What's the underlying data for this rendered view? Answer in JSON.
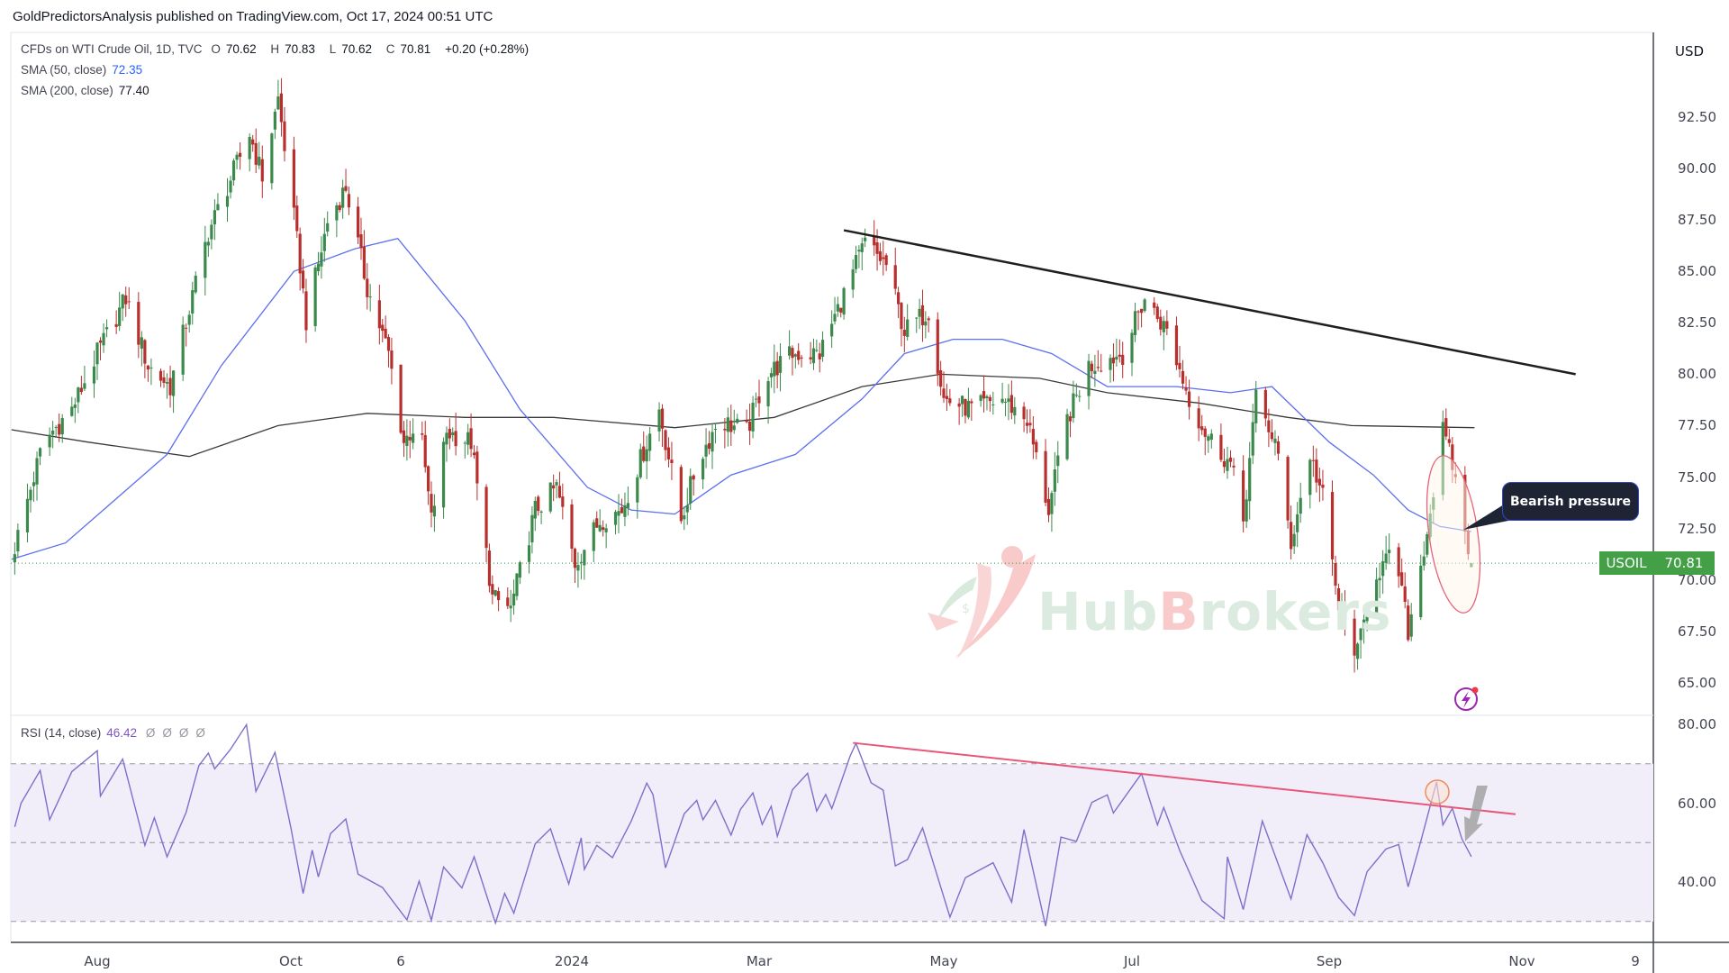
{
  "publisher": "GoldPredictorsAnalysis published on TradingView.com, Oct 17, 2024 00:51 UTC",
  "legend": {
    "symbol": "CFDs on WTI Crude Oil, 1D, TVC",
    "open_label": "O",
    "open": "70.62",
    "high_label": "H",
    "high": "70.83",
    "low_label": "L",
    "low": "70.62",
    "close_label": "C",
    "close": "70.81",
    "change": "+0.20 (+0.28%)",
    "sma50_label": "SMA (50, close)",
    "sma50_value": "72.35",
    "sma200_label": "SMA (200, close)",
    "sma200_value": "77.40",
    "rsi_label": "RSI (14, close)",
    "rsi_value": "46.42",
    "rsi_nulls": [
      "Ø",
      "Ø",
      "Ø",
      "Ø"
    ]
  },
  "price_axis": {
    "currency": "USD",
    "ticks": [
      "92.50",
      "90.00",
      "87.50",
      "85.00",
      "82.50",
      "80.00",
      "77.50",
      "75.00",
      "72.50",
      "70.00",
      "67.50",
      "65.00"
    ]
  },
  "rsi_axis": {
    "ticks": [
      "80.00",
      "60.00",
      "40.00"
    ]
  },
  "time_axis": {
    "ticks": [
      {
        "label": "Aug",
        "date": "2023-08-01"
      },
      {
        "label": "Oct",
        "date": "2023-10-01"
      },
      {
        "label": "6",
        "date": "2023-11-06"
      },
      {
        "label": "2024",
        "date": "2024-01-01"
      },
      {
        "label": "Mar",
        "date": "2024-03-01"
      },
      {
        "label": "May",
        "date": "2024-05-01"
      },
      {
        "label": "Jul",
        "date": "2024-07-01"
      },
      {
        "label": "Sep",
        "date": "2024-09-01"
      },
      {
        "label": "Nov",
        "date": "2024-11-01"
      },
      {
        "label": "9",
        "date": "2024-12-09"
      }
    ]
  },
  "last_price": {
    "symbol": "USOIL",
    "value": "70.81",
    "color": "#43a047"
  },
  "annotation": {
    "text": "Bearish pressure"
  },
  "watermark": {
    "part1": "Hub",
    "part2": "B",
    "part3": "rokers"
  },
  "colors": {
    "up": "#3b8a4c",
    "down": "#b8302e",
    "sma50": "#5b6ff0",
    "sma200": "#3a3a3a",
    "rsi": "#7e6fc9",
    "rsi_band": "#f1eefa",
    "rsi_trend": "#e8577a",
    "trendline": "#1f1f1f",
    "ellipse": "#e8627a"
  },
  "chart_data": {
    "type": "candlestick",
    "symbol": "USOIL",
    "timeframe": "1D",
    "ylim": [
      63.5,
      95.5
    ],
    "last_bar": {
      "open": 70.62,
      "high": 70.83,
      "low": 70.62,
      "close": 70.81
    },
    "close_path": [
      [
        "2023-07-06",
        71.6
      ],
      [
        "2023-07-15",
        76.7
      ],
      [
        "2023-07-24",
        78.3
      ],
      [
        "2023-08-01",
        81.0
      ],
      [
        "2023-08-10",
        83.7
      ],
      [
        "2023-08-17",
        80.4
      ],
      [
        "2023-08-24",
        79.4
      ],
      [
        "2023-09-05",
        86.9
      ],
      [
        "2023-09-18",
        91.7
      ],
      [
        "2023-09-22",
        89.6
      ],
      [
        "2023-09-27",
        93.4
      ],
      [
        "2023-10-04",
        85.3
      ],
      [
        "2023-10-06",
        82.6
      ],
      [
        "2023-10-13",
        87.4
      ],
      [
        "2023-10-19",
        89.1
      ],
      [
        "2023-10-26",
        84.2
      ],
      [
        "2023-11-02",
        81.0
      ],
      [
        "2023-11-07",
        76.7
      ],
      [
        "2023-11-12",
        77.8
      ],
      [
        "2023-11-16",
        72.9
      ],
      [
        "2023-11-21",
        77.2
      ],
      [
        "2023-11-29",
        76.7
      ],
      [
        "2023-12-06",
        69.1
      ],
      [
        "2023-12-12",
        68.6
      ],
      [
        "2023-12-20",
        73.4
      ],
      [
        "2023-12-27",
        74.5
      ],
      [
        "2024-01-02",
        70.8
      ],
      [
        "2024-01-10",
        72.9
      ],
      [
        "2024-01-17",
        73.4
      ],
      [
        "2024-01-29",
        78.3
      ],
      [
        "2024-02-05",
        72.9
      ],
      [
        "2024-02-10",
        75.6
      ],
      [
        "2024-02-17",
        77.8
      ],
      [
        "2024-02-26",
        77.2
      ],
      [
        "2024-03-03",
        79.9
      ],
      [
        "2024-03-12",
        81.0
      ],
      [
        "2024-03-21",
        81.0
      ],
      [
        "2024-04-05",
        86.4
      ],
      [
        "2024-04-12",
        85.3
      ],
      [
        "2024-04-18",
        82.1
      ],
      [
        "2024-04-26",
        83.1
      ],
      [
        "2024-05-01",
        78.8
      ],
      [
        "2024-05-10",
        78.3
      ],
      [
        "2024-05-20",
        78.8
      ],
      [
        "2024-05-28",
        77.8
      ],
      [
        "2024-06-04",
        73.4
      ],
      [
        "2024-06-10",
        77.8
      ],
      [
        "2024-06-17",
        80.4
      ],
      [
        "2024-06-28",
        81.0
      ],
      [
        "2024-07-05",
        83.7
      ],
      [
        "2024-07-12",
        82.1
      ],
      [
        "2024-07-19",
        78.8
      ],
      [
        "2024-07-24",
        77.2
      ],
      [
        "2024-08-01",
        75.6
      ],
      [
        "2024-08-05",
        72.9
      ],
      [
        "2024-08-09",
        78.8
      ],
      [
        "2024-08-15",
        76.7
      ],
      [
        "2024-08-20",
        71.8
      ],
      [
        "2024-08-26",
        76.1
      ],
      [
        "2024-08-30",
        74.0
      ],
      [
        "2024-09-04",
        68.6
      ],
      [
        "2024-09-10",
        66.4
      ],
      [
        "2024-09-15",
        70.2
      ],
      [
        "2024-09-22",
        71.3
      ],
      [
        "2024-09-26",
        67.5
      ],
      [
        "2024-10-02",
        72.4
      ],
      [
        "2024-10-07",
        77.2
      ],
      [
        "2024-10-10",
        75.6
      ],
      [
        "2024-10-14",
        72.4
      ],
      [
        "2024-10-16",
        70.81
      ]
    ],
    "sma50": [
      [
        "2023-07-05",
        71.0
      ],
      [
        "2023-07-22",
        71.8
      ],
      [
        "2023-08-23",
        76.1
      ],
      [
        "2023-09-09",
        80.4
      ],
      [
        "2023-10-02",
        85.0
      ],
      [
        "2023-10-22",
        86.1
      ],
      [
        "2023-11-05",
        86.6
      ],
      [
        "2023-11-27",
        82.6
      ],
      [
        "2023-12-15",
        78.3
      ],
      [
        "2024-01-06",
        74.5
      ],
      [
        "2024-01-20",
        73.4
      ],
      [
        "2024-02-03",
        73.2
      ],
      [
        "2024-02-21",
        75.1
      ],
      [
        "2024-03-13",
        76.1
      ],
      [
        "2024-04-04",
        78.8
      ],
      [
        "2024-04-18",
        81.0
      ],
      [
        "2024-05-04",
        81.7
      ],
      [
        "2024-05-20",
        81.7
      ],
      [
        "2024-06-05",
        81.0
      ],
      [
        "2024-06-23",
        79.4
      ],
      [
        "2024-07-15",
        79.4
      ],
      [
        "2024-08-01",
        79.1
      ],
      [
        "2024-08-14",
        79.4
      ],
      [
        "2024-09-01",
        76.7
      ],
      [
        "2024-09-15",
        75.1
      ],
      [
        "2024-09-26",
        73.4
      ],
      [
        "2024-10-06",
        72.6
      ],
      [
        "2024-10-16",
        72.35
      ]
    ],
    "sma200": [
      [
        "2023-07-05",
        77.3
      ],
      [
        "2023-07-29",
        76.7
      ],
      [
        "2023-08-30",
        76.0
      ],
      [
        "2023-09-27",
        77.5
      ],
      [
        "2023-10-26",
        78.1
      ],
      [
        "2023-11-27",
        77.9
      ],
      [
        "2023-12-26",
        77.9
      ],
      [
        "2024-02-03",
        77.4
      ],
      [
        "2024-03-06",
        77.9
      ],
      [
        "2024-04-04",
        79.4
      ],
      [
        "2024-04-30",
        80.0
      ],
      [
        "2024-06-01",
        79.8
      ],
      [
        "2024-06-23",
        79.1
      ],
      [
        "2024-07-22",
        78.6
      ],
      [
        "2024-08-19",
        77.9
      ],
      [
        "2024-09-08",
        77.5
      ],
      [
        "2024-10-17",
        77.4
      ]
    ],
    "price_trendline": [
      [
        "2024-03-29",
        87.0
      ],
      [
        "2024-11-19",
        80.0
      ]
    ],
    "rsi": {
      "ylim": [
        25,
        83
      ],
      "bands": [
        70,
        50,
        30
      ],
      "values": [
        [
          "2023-07-06",
          54
        ],
        [
          "2023-07-08",
          60
        ],
        [
          "2023-07-14",
          68.3
        ],
        [
          "2023-07-17",
          55.8
        ],
        [
          "2023-07-24",
          68
        ],
        [
          "2023-08-01",
          73.3
        ],
        [
          "2023-08-02",
          61.8
        ],
        [
          "2023-08-09",
          71.2
        ],
        [
          "2023-08-16",
          49.3
        ],
        [
          "2023-08-19",
          56.3
        ],
        [
          "2023-08-23",
          46.4
        ],
        [
          "2023-08-29",
          57.7
        ],
        [
          "2023-09-02",
          69.5
        ],
        [
          "2023-09-05",
          72.7
        ],
        [
          "2023-09-07",
          68.7
        ],
        [
          "2023-09-12",
          73.7
        ],
        [
          "2023-09-17",
          79.9
        ],
        [
          "2023-09-20",
          63
        ],
        [
          "2023-09-26",
          72.9
        ],
        [
          "2023-10-01",
          53.8
        ],
        [
          "2023-10-05",
          37.1
        ],
        [
          "2023-10-08",
          48.1
        ],
        [
          "2023-10-10",
          41.3
        ],
        [
          "2023-10-14",
          52.3
        ],
        [
          "2023-10-19",
          56
        ],
        [
          "2023-10-23",
          42
        ],
        [
          "2023-10-31",
          38.6
        ],
        [
          "2023-11-08",
          30.4
        ],
        [
          "2023-11-12",
          40.2
        ],
        [
          "2023-11-16",
          30.3
        ],
        [
          "2023-11-20",
          43.8
        ],
        [
          "2023-11-26",
          38.5
        ],
        [
          "2023-11-30",
          46.4
        ],
        [
          "2023-12-07",
          29.6
        ],
        [
          "2023-12-10",
          37.1
        ],
        [
          "2023-12-13",
          32.1
        ],
        [
          "2023-12-20",
          49.7
        ],
        [
          "2023-12-25",
          53.5
        ],
        [
          "2023-12-31",
          39.5
        ],
        [
          "2024-01-04",
          51.2
        ],
        [
          "2024-01-05",
          43.2
        ],
        [
          "2024-01-09",
          49.3
        ],
        [
          "2024-01-14",
          46.2
        ],
        [
          "2024-01-20",
          55.4
        ],
        [
          "2024-01-25",
          65.1
        ],
        [
          "2024-01-27",
          62.2
        ],
        [
          "2024-01-31",
          43.6
        ],
        [
          "2024-02-06",
          57.3
        ],
        [
          "2024-02-10",
          60.7
        ],
        [
          "2024-02-12",
          55.8
        ],
        [
          "2024-02-16",
          60.7
        ],
        [
          "2024-02-21",
          51.9
        ],
        [
          "2024-02-24",
          58.4
        ],
        [
          "2024-02-28",
          62.6
        ],
        [
          "2024-03-02",
          54.6
        ],
        [
          "2024-03-05",
          59.2
        ],
        [
          "2024-03-07",
          51.6
        ],
        [
          "2024-03-12",
          63.4
        ],
        [
          "2024-03-17",
          67.6
        ],
        [
          "2024-03-20",
          58
        ],
        [
          "2024-03-23",
          62.2
        ],
        [
          "2024-03-25",
          58.6
        ],
        [
          "2024-03-31",
          71.8
        ],
        [
          "2024-04-02",
          75.2
        ],
        [
          "2024-04-07",
          65.2
        ],
        [
          "2024-04-11",
          63.3
        ],
        [
          "2024-04-15",
          44.1
        ],
        [
          "2024-04-19",
          45.7
        ],
        [
          "2024-04-24",
          53.7
        ],
        [
          "2024-05-03",
          31.1
        ],
        [
          "2024-05-08",
          41.1
        ],
        [
          "2024-05-17",
          44.9
        ],
        [
          "2024-05-23",
          34.9
        ],
        [
          "2024-05-27",
          53.3
        ],
        [
          "2024-06-03",
          28.8
        ],
        [
          "2024-06-08",
          51.4
        ],
        [
          "2024-06-13",
          50.3
        ],
        [
          "2024-06-18",
          60.2
        ],
        [
          "2024-06-23",
          62.1
        ],
        [
          "2024-06-25",
          57.5
        ],
        [
          "2024-07-04",
          67.5
        ],
        [
          "2024-07-09",
          54.5
        ],
        [
          "2024-07-11",
          58.9
        ],
        [
          "2024-07-16",
          48
        ],
        [
          "2024-07-23",
          35.3
        ],
        [
          "2024-07-30",
          30.7
        ],
        [
          "2024-07-31",
          46.4
        ],
        [
          "2024-08-05",
          33
        ],
        [
          "2024-08-11",
          55.5
        ],
        [
          "2024-08-20",
          35.7
        ],
        [
          "2024-08-25",
          52
        ],
        [
          "2024-08-30",
          44.9
        ],
        [
          "2024-09-04",
          36.1
        ],
        [
          "2024-09-09",
          31.5
        ],
        [
          "2024-09-13",
          42.6
        ],
        [
          "2024-09-19",
          48.4
        ],
        [
          "2024-09-23",
          49.5
        ],
        [
          "2024-09-26",
          38.8
        ],
        [
          "2024-09-30",
          50.3
        ],
        [
          "2024-10-05",
          65.4
        ],
        [
          "2024-10-07",
          54.5
        ],
        [
          "2024-10-10",
          58.7
        ],
        [
          "2024-10-13",
          51
        ],
        [
          "2024-10-16",
          46.42
        ]
      ],
      "trendline": [
        [
          "2024-04-01",
          75.3
        ],
        [
          "2024-10-30",
          57.2
        ]
      ]
    }
  }
}
